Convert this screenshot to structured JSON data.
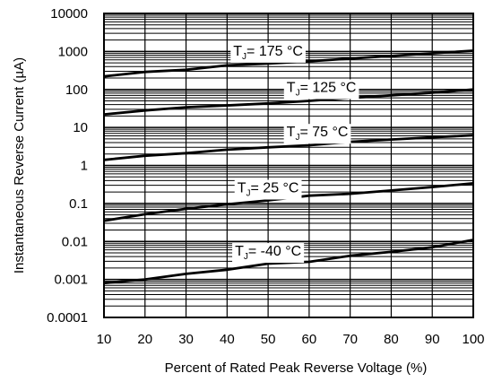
{
  "chart_data": {
    "type": "line",
    "xlabel": "Percent of Rated Peak Reverse Voltage (%)",
    "ylabel": "Instantaneous Reverse Current (µA)",
    "xlim": [
      10,
      100
    ],
    "ylim": [
      0.0001,
      10000
    ],
    "yscale": "log",
    "grid": true,
    "x_ticks": [
      10,
      20,
      30,
      40,
      50,
      60,
      70,
      80,
      90,
      100
    ],
    "y_tick_labels": [
      "0.0001",
      "0.001",
      "0.01",
      "0.1",
      "1",
      "10",
      "100",
      "1000",
      "10000"
    ],
    "y_ticks": [
      0.0001,
      0.001,
      0.01,
      0.1,
      1,
      10,
      100,
      1000,
      10000
    ],
    "series": [
      {
        "name": "T",
        "sub": "J",
        "suffix": "= 175 °C",
        "label_x": 50,
        "x": [
          10,
          20,
          30,
          40,
          50,
          60,
          70,
          80,
          90,
          100
        ],
        "values": [
          220,
          290,
          330,
          430,
          480,
          550,
          650,
          760,
          890,
          1050
        ]
      },
      {
        "name": "T",
        "sub": "J",
        "suffix": "= 125 °C",
        "label_x": 63,
        "x": [
          10,
          20,
          30,
          40,
          50,
          60,
          70,
          80,
          90,
          100
        ],
        "values": [
          22,
          28,
          34,
          38,
          43,
          50,
          60,
          70,
          82,
          100
        ]
      },
      {
        "name": "T",
        "sub": "J",
        "suffix": "= 75 °C",
        "label_x": 62,
        "x": [
          10,
          20,
          30,
          40,
          50,
          60,
          70,
          80,
          90,
          100
        ],
        "values": [
          1.4,
          1.8,
          2.1,
          2.6,
          3.0,
          3.4,
          4.2,
          4.8,
          5.5,
          6.2
        ]
      },
      {
        "name": "T",
        "sub": "J",
        "suffix": "= 25 °C",
        "label_x": 50,
        "x": [
          10,
          20,
          30,
          40,
          50,
          60,
          70,
          80,
          90,
          100
        ],
        "values": [
          0.035,
          0.052,
          0.072,
          0.095,
          0.12,
          0.16,
          0.18,
          0.22,
          0.27,
          0.34
        ]
      },
      {
        "name": "T",
        "sub": "J",
        "suffix": "= -40 °C",
        "label_x": 50,
        "x": [
          10,
          20,
          30,
          40,
          50,
          60,
          70,
          80,
          90,
          100
        ],
        "values": [
          0.0008,
          0.001,
          0.0014,
          0.0018,
          0.0026,
          0.0029,
          0.0042,
          0.0053,
          0.007,
          0.011
        ]
      }
    ]
  }
}
